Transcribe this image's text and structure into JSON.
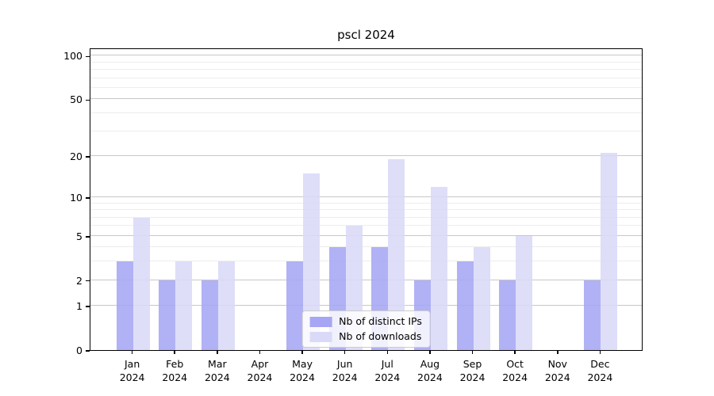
{
  "title": "pscl 2024",
  "chart_data": {
    "type": "bar",
    "title": "pscl 2024",
    "categories": [
      "Jan",
      "Feb",
      "Mar",
      "Apr",
      "May",
      "Jun",
      "Jul",
      "Aug",
      "Sep",
      "Oct",
      "Nov",
      "Dec"
    ],
    "x_year": "2024",
    "series": [
      {
        "name": "Nb of distinct IPs",
        "color": "#a6a6f4",
        "values": [
          3,
          2,
          2,
          0,
          3,
          4,
          4,
          2,
          3,
          2,
          0,
          2
        ]
      },
      {
        "name": "Nb of downloads",
        "color": "#dadaf8",
        "values": [
          7,
          3,
          3,
          0,
          15,
          6,
          19,
          12,
          4,
          5,
          0,
          21
        ]
      }
    ],
    "xlabel": "",
    "ylabel": "",
    "yscale": "log1p",
    "ylim": [
      0,
      113
    ],
    "yticks": [
      0,
      1,
      2,
      5,
      10,
      20,
      50,
      100
    ],
    "grid_major": [
      1,
      2,
      5,
      10,
      20,
      50,
      100
    ],
    "grid_minor": [
      3,
      4,
      6,
      7,
      8,
      9,
      30,
      40,
      60,
      70,
      80,
      90
    ],
    "grid": true,
    "legend_position": "lower center",
    "background_color": "#ffffff",
    "spine_color": "#000000",
    "grid_major_color": "#c7c7c7",
    "grid_minor_color": "#ededed"
  }
}
